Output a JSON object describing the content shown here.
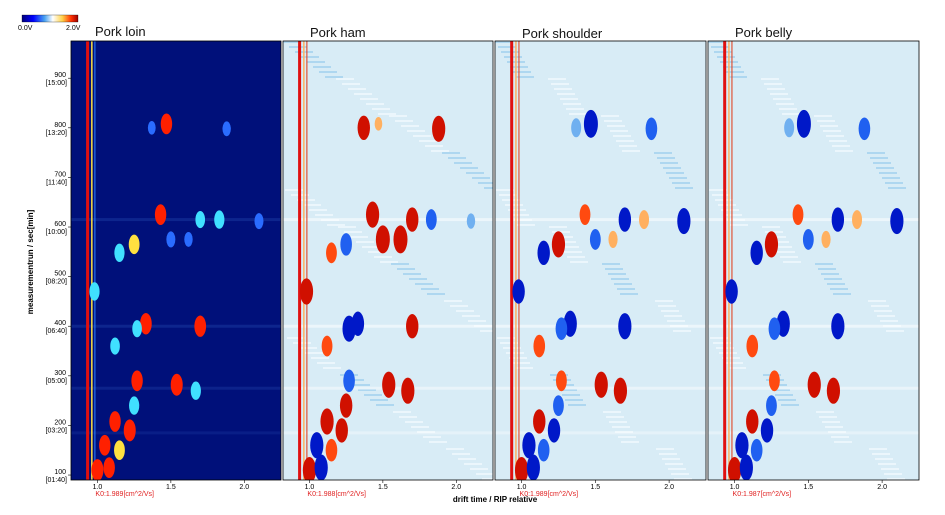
{
  "chart_data": {
    "type": "heatmap",
    "xlabel": "drift time / RIP relative",
    "ylabel": "measurementrun / sec[min]",
    "colorbar": {
      "min_label": "0.0V",
      "max_label": "2.0V",
      "colors": [
        "#00007a",
        "#0000ff",
        "#46a0f0",
        "#ffffff",
        "#ffd24a",
        "#ff3000",
        "#9a0000"
      ]
    },
    "xlim": [
      0.82,
      2.25
    ],
    "ylim": [
      90,
      975
    ],
    "x_ticks": [
      {
        "value": 1.0,
        "label": "1.0"
      },
      {
        "value": 1.5,
        "label": "1.5"
      },
      {
        "value": 2.0,
        "label": "2.0"
      }
    ],
    "y_ticks": [
      {
        "value": 100,
        "label": "100",
        "sub": "[01:40]"
      },
      {
        "value": 200,
        "label": "200",
        "sub": "[03:20]"
      },
      {
        "value": 300,
        "label": "300",
        "sub": "[05:00]"
      },
      {
        "value": 400,
        "label": "400",
        "sub": "[06:40]"
      },
      {
        "value": 500,
        "label": "500",
        "sub": "[08:20]"
      },
      {
        "value": 600,
        "label": "600",
        "sub": "[10:00]"
      },
      {
        "value": 700,
        "label": "700",
        "sub": "[11:40]"
      },
      {
        "value": 800,
        "label": "800",
        "sub": "[13:20]"
      },
      {
        "value": 900,
        "label": "900",
        "sub": "[15:00]"
      }
    ],
    "panels": [
      {
        "title": "Pork loin",
        "mode": "topographic",
        "k0_label": "K0:1.989[cm^2/Vs]"
      },
      {
        "title": "Pork ham",
        "mode": "difference",
        "k0_label": "K0:1.988[cm^2/Vs]"
      },
      {
        "title": "Pork shoulder",
        "mode": "difference",
        "k0_label": "K0:1.989[cm^2/Vs]"
      },
      {
        "title": "Pork belly",
        "mode": "difference",
        "k0_label": "K0:1.987[cm^2/Vs]"
      }
    ],
    "rip_peak_x": 0.95,
    "signals": [
      {
        "x": 1.47,
        "y": 808,
        "loin": 0.9,
        "ham": 0.2,
        "shoulder": -1.0,
        "belly": -1.0
      },
      {
        "x": 1.88,
        "y": 798,
        "loin": 0.4,
        "ham": 0.9,
        "shoulder": -0.7,
        "belly": -0.7
      },
      {
        "x": 1.37,
        "y": 800,
        "loin": 0.3,
        "ham": 0.8,
        "shoulder": -0.5,
        "belly": -0.5
      },
      {
        "x": 1.43,
        "y": 625,
        "loin": 0.9,
        "ham": 0.9,
        "shoulder": 0.6,
        "belly": 0.6
      },
      {
        "x": 1.7,
        "y": 615,
        "loin": 0.6,
        "ham": 0.8,
        "shoulder": -0.8,
        "belly": -0.8
      },
      {
        "x": 1.83,
        "y": 615,
        "loin": 0.7,
        "ham": -0.6,
        "shoulder": 0.5,
        "belly": 0.5
      },
      {
        "x": 2.1,
        "y": 612,
        "loin": 0.5,
        "ham": -0.3,
        "shoulder": -0.9,
        "belly": -0.9
      },
      {
        "x": 1.25,
        "y": 565,
        "loin": 0.8,
        "ham": -0.7,
        "shoulder": 0.9,
        "belly": 0.9
      },
      {
        "x": 1.15,
        "y": 548,
        "loin": 0.7,
        "ham": 0.6,
        "shoulder": -0.8,
        "belly": -0.8
      },
      {
        "x": 1.5,
        "y": 575,
        "loin": 0.5,
        "ham": 1.0,
        "shoulder": -0.6,
        "belly": -0.6
      },
      {
        "x": 1.62,
        "y": 575,
        "loin": 0.4,
        "ham": 1.0,
        "shoulder": 0.4,
        "belly": 0.4
      },
      {
        "x": 1.33,
        "y": 405,
        "loin": 0.95,
        "ham": -0.8,
        "shoulder": -0.9,
        "belly": -0.9
      },
      {
        "x": 1.7,
        "y": 400,
        "loin": 0.95,
        "ham": 0.8,
        "shoulder": -0.9,
        "belly": -0.9
      },
      {
        "x": 1.27,
        "y": 395,
        "loin": 0.6,
        "ham": -0.9,
        "shoulder": -0.7,
        "belly": -0.7
      },
      {
        "x": 1.12,
        "y": 360,
        "loin": 0.6,
        "ham": 0.6,
        "shoulder": 0.7,
        "belly": 0.7
      },
      {
        "x": 1.54,
        "y": 282,
        "loin": 1.0,
        "ham": 0.9,
        "shoulder": 0.9,
        "belly": 0.9
      },
      {
        "x": 1.67,
        "y": 270,
        "loin": 0.7,
        "ham": 0.9,
        "shoulder": 0.9,
        "belly": 0.9
      },
      {
        "x": 1.27,
        "y": 290,
        "loin": 0.9,
        "ham": -0.7,
        "shoulder": 0.6,
        "belly": 0.6
      },
      {
        "x": 1.22,
        "y": 190,
        "loin": 1.0,
        "ham": 0.8,
        "shoulder": -0.8,
        "belly": -0.8
      },
      {
        "x": 1.12,
        "y": 208,
        "loin": 0.9,
        "ham": 0.9,
        "shoulder": 0.8,
        "belly": 0.8
      },
      {
        "x": 1.05,
        "y": 160,
        "loin": 0.9,
        "ham": -0.9,
        "shoulder": -0.9,
        "belly": -0.9
      },
      {
        "x": 1.15,
        "y": 150,
        "loin": 0.8,
        "ham": 0.7,
        "shoulder": -0.7,
        "belly": -0.7
      },
      {
        "x": 1.0,
        "y": 110,
        "loin": 1.0,
        "ham": 0.9,
        "shoulder": 0.9,
        "belly": 0.9
      },
      {
        "x": 1.08,
        "y": 115,
        "loin": 0.9,
        "ham": -0.9,
        "shoulder": -0.9,
        "belly": -0.9
      },
      {
        "x": 1.25,
        "y": 240,
        "loin": 0.7,
        "ham": 0.8,
        "shoulder": -0.6,
        "belly": -0.6
      },
      {
        "x": 0.98,
        "y": 470,
        "loin": 0.7,
        "ham": 0.9,
        "shoulder": -0.8,
        "belly": -0.8
      }
    ],
    "horizontal_bands": [
      {
        "y": 615,
        "strength": 0.5
      },
      {
        "y": 400,
        "strength": 0.5
      },
      {
        "y": 275,
        "strength": 0.45
      },
      {
        "y": 185,
        "strength": 0.35
      }
    ]
  }
}
